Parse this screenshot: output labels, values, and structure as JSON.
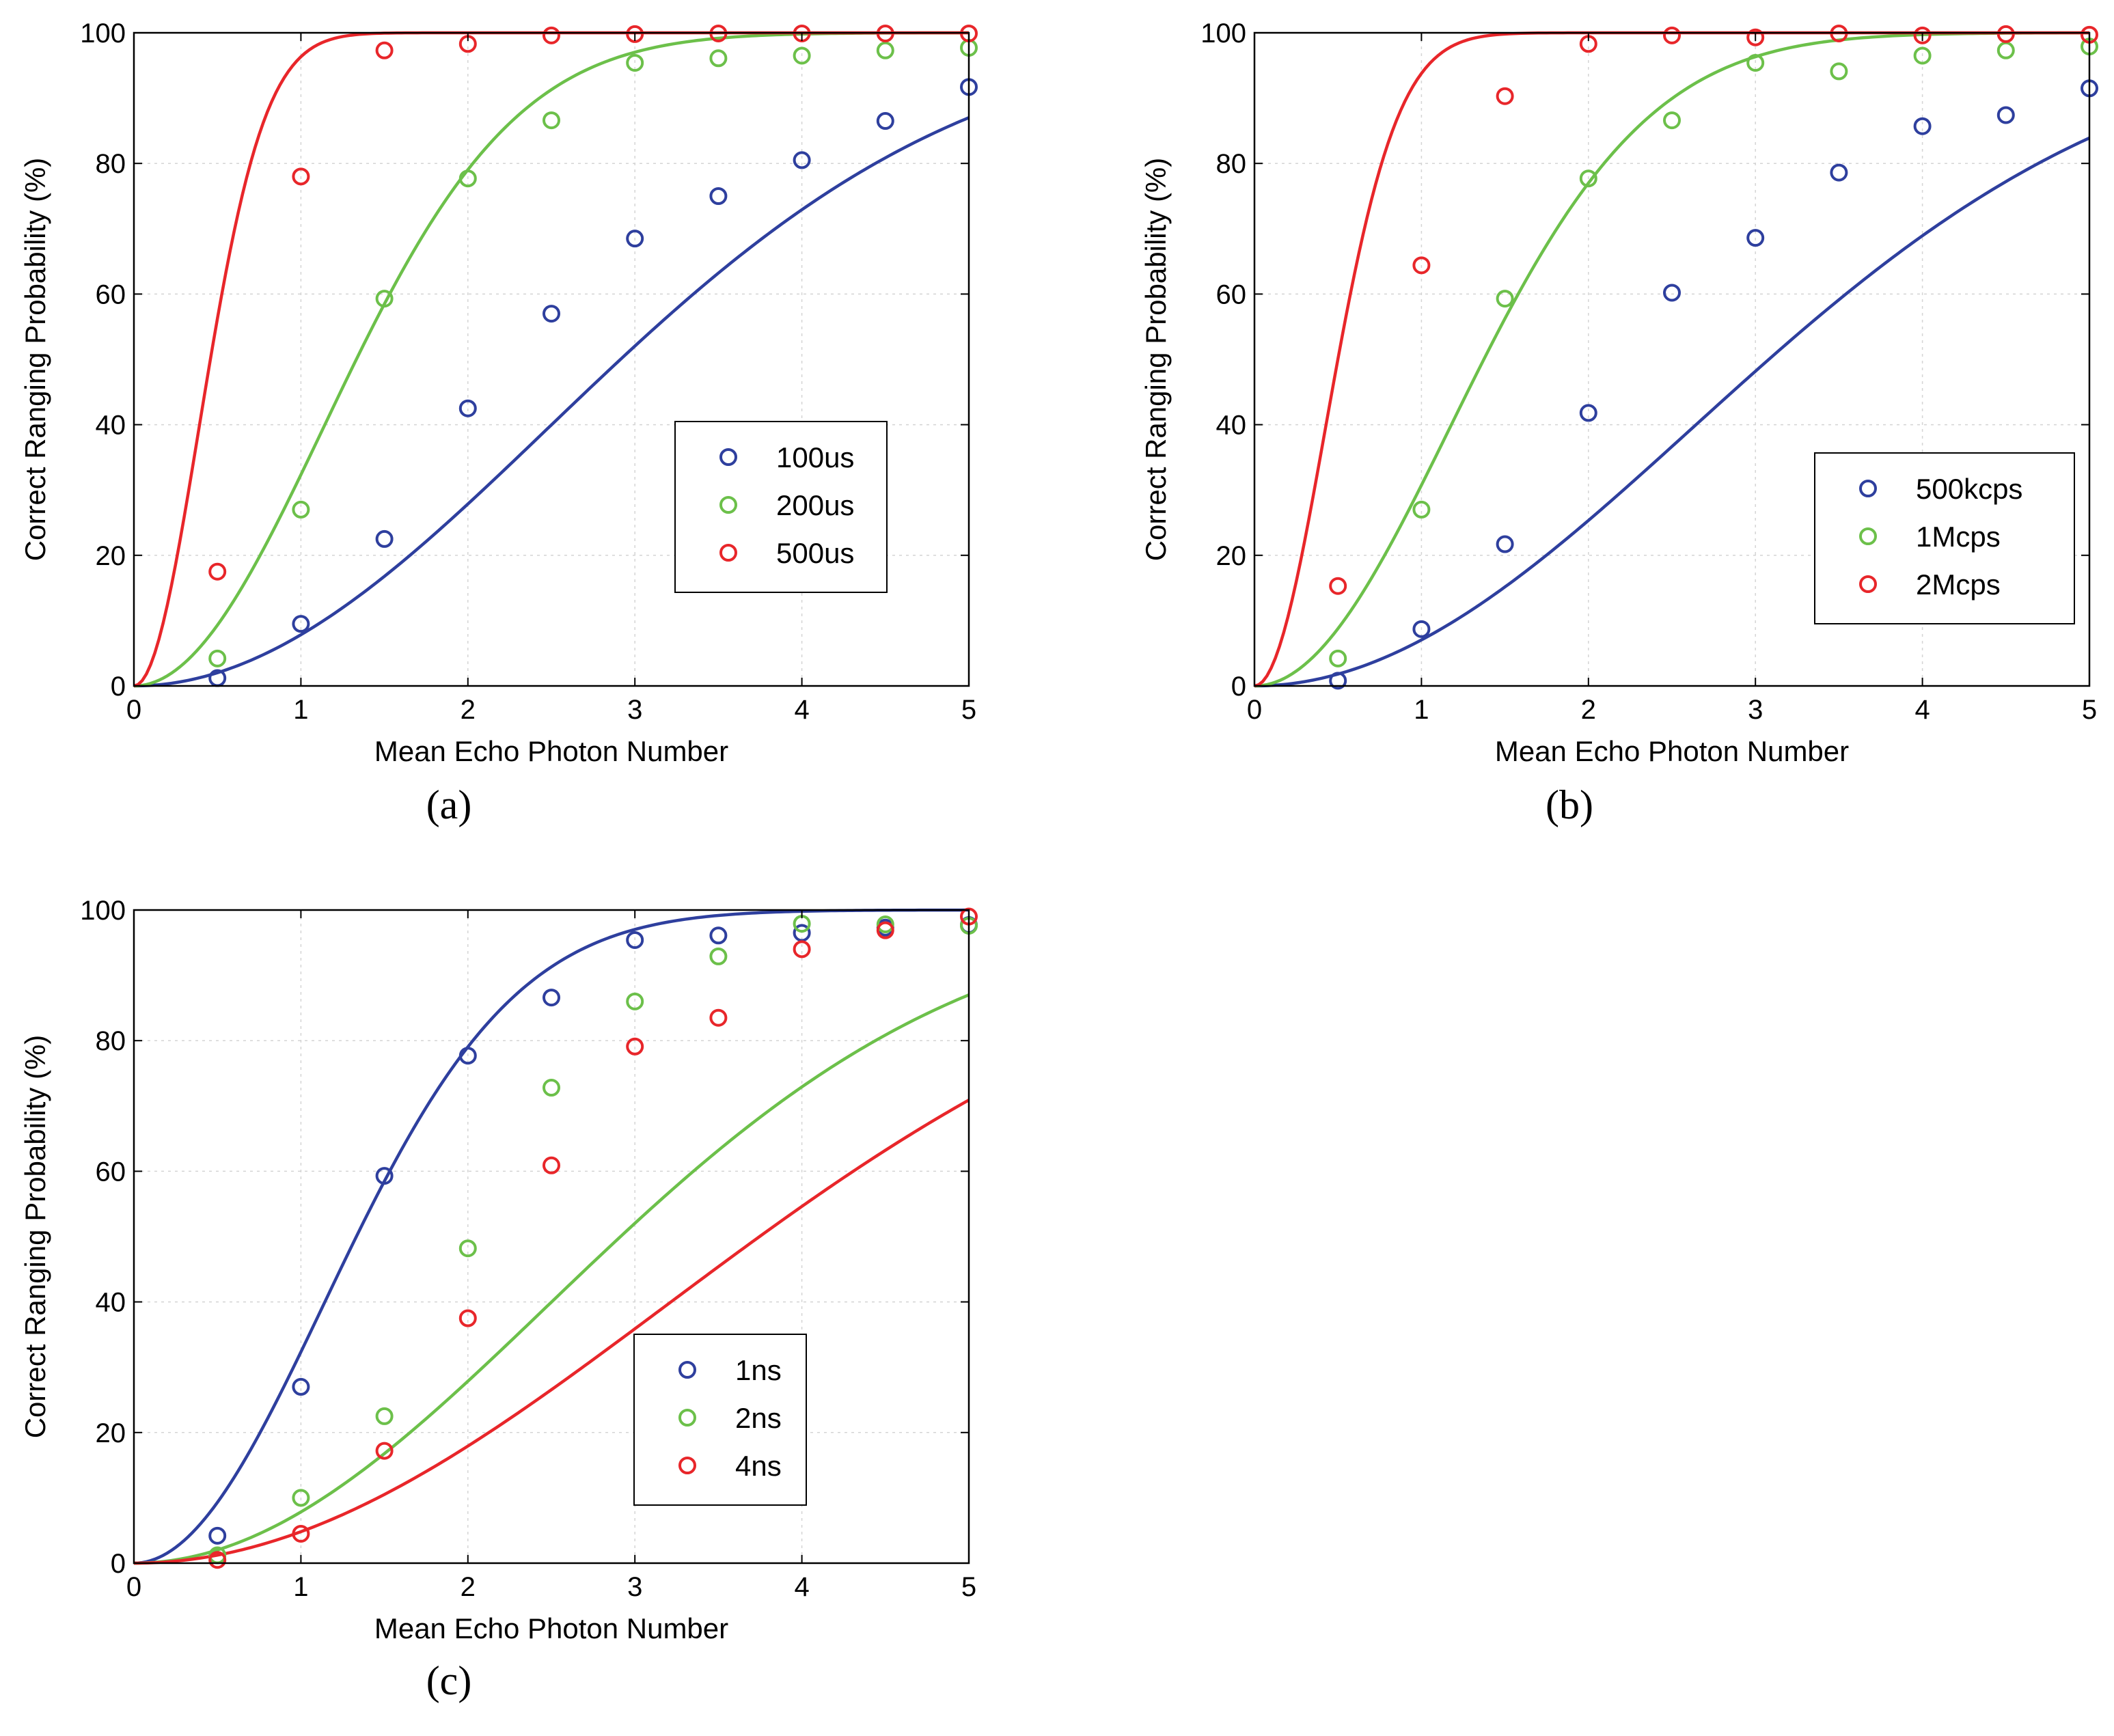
{
  "chart_data": [
    {
      "type": "scatter+line",
      "panel_label": "(a)",
      "xlabel": "Mean Echo Photon Number",
      "ylabel": "Correct Ranging Probability (%)",
      "xlim": [
        0,
        5
      ],
      "ylim": [
        0,
        100
      ],
      "xticks": [
        "0",
        "1",
        "2",
        "3",
        "4",
        "5"
      ],
      "yticks": [
        "0",
        "20",
        "40",
        "60",
        "80",
        "100"
      ],
      "grid": true,
      "legend_position": "lower-right",
      "series": [
        {
          "name": "100us",
          "color": "#2e3f9e",
          "k": 1,
          "n": 3.5,
          "x": [
            0.5,
            1,
            1.5,
            2,
            2.5,
            3,
            3.5,
            4,
            4.5,
            5
          ],
          "y": [
            1.2,
            9.5,
            22.5,
            42.5,
            57,
            68.5,
            75,
            80.5,
            86.5,
            91.7
          ]
        },
        {
          "name": "200us",
          "color": "#6cc04a",
          "k": 1,
          "n": 1.6,
          "x": [
            0.5,
            1,
            1.5,
            2,
            2.5,
            3,
            3.5,
            4,
            4.5,
            5
          ],
          "y": [
            4.2,
            27,
            59.3,
            77.7,
            86.6,
            95.4,
            96.1,
            96.5,
            97.3,
            97.7
          ]
        },
        {
          "name": "500us",
          "color": "#e8262a",
          "k": 1,
          "n": 0.55,
          "x": [
            0.5,
            1,
            1.5,
            2,
            2.5,
            3,
            3.5,
            4,
            4.5,
            5
          ],
          "y": [
            17.5,
            78,
            97.3,
            98.3,
            99.6,
            99.8,
            99.9,
            99.9,
            99.9,
            99.9
          ]
        }
      ]
    },
    {
      "type": "scatter+line",
      "panel_label": "(b)",
      "xlabel": "Mean Echo Photon Number",
      "ylabel": "Correct Ranging Probability (%)",
      "xlim": [
        0,
        5
      ],
      "ylim": [
        0,
        100
      ],
      "xticks": [
        "0",
        "1",
        "2",
        "3",
        "4",
        "5"
      ],
      "yticks": [
        "0",
        "20",
        "40",
        "60",
        "80",
        "100"
      ],
      "grid": true,
      "legend_position": "lower-right",
      "series": [
        {
          "name": "500kcps",
          "color": "#2e3f9e",
          "k": 1,
          "n": 3.7,
          "x": [
            0.5,
            1,
            1.5,
            2,
            2.5,
            3,
            3.5,
            4,
            4.5,
            5
          ],
          "y": [
            0.8,
            8.7,
            21.7,
            41.8,
            60.2,
            68.6,
            78.6,
            85.7,
            87.4,
            91.5
          ]
        },
        {
          "name": "1Mcps",
          "color": "#6cc04a",
          "k": 1,
          "n": 1.65,
          "x": [
            0.5,
            1,
            1.5,
            2,
            2.5,
            3,
            3.5,
            4,
            4.5,
            5
          ],
          "y": [
            4.2,
            27,
            59.3,
            77.7,
            86.6,
            95.4,
            94.1,
            96.5,
            97.3,
            97.9
          ]
        },
        {
          "name": "2Mcps",
          "color": "#e8262a",
          "k": 1,
          "n": 0.6,
          "x": [
            0.5,
            1,
            1.5,
            2,
            2.5,
            3,
            3.5,
            4,
            4.5,
            5
          ],
          "y": [
            15.3,
            64.4,
            90.3,
            98.3,
            99.6,
            99.3,
            99.9,
            99.6,
            99.8,
            99.7
          ]
        }
      ]
    },
    {
      "type": "scatter+line",
      "panel_label": "(c)",
      "xlabel": "Mean Echo Photon Number",
      "ylabel": "Correct Ranging Probability (%)",
      "xlim": [
        0,
        5
      ],
      "ylim": [
        0,
        100
      ],
      "xticks": [
        "0",
        "1",
        "2",
        "3",
        "4",
        "5"
      ],
      "yticks": [
        "0",
        "20",
        "40",
        "60",
        "80",
        "100"
      ],
      "grid": true,
      "legend_position": "lower-right",
      "series": [
        {
          "name": "1ns",
          "color": "#2e3f9e",
          "k": 1,
          "n": 1.6,
          "x": [
            0.5,
            1,
            1.5,
            2,
            2.5,
            3,
            3.5,
            4,
            4.5,
            5
          ],
          "y": [
            4.2,
            27,
            59.3,
            77.7,
            86.6,
            95.4,
            96.1,
            96.5,
            97.3,
            97.7
          ]
        },
        {
          "name": "2ns",
          "color": "#6cc04a",
          "k": 1,
          "n": 3.5,
          "x": [
            0.5,
            1,
            1.5,
            2,
            2.5,
            3,
            3.5,
            4,
            4.5,
            5
          ],
          "y": [
            1.2,
            10,
            22.5,
            48.2,
            72.8,
            86,
            92.9,
            97.9,
            97.8,
            97.6
          ]
        },
        {
          "name": "4ns",
          "color": "#e8262a",
          "k": 1,
          "n": 4.5,
          "x": [
            0.5,
            1,
            1.5,
            2,
            2.5,
            3,
            3.5,
            4,
            4.5,
            5
          ],
          "y": [
            0.5,
            4.5,
            17.2,
            37.5,
            60.9,
            79.1,
            83.5,
            94,
            96.9,
            99
          ]
        }
      ]
    }
  ]
}
